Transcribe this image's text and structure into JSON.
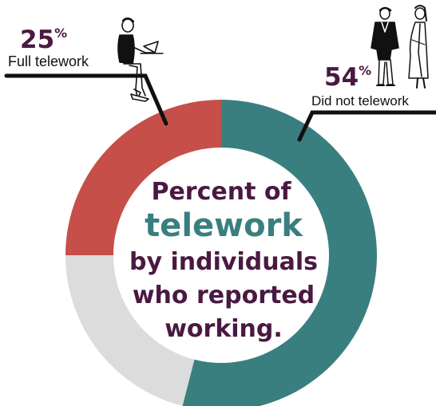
{
  "chart_data": {
    "type": "pie",
    "style": "donut",
    "title_lines": [
      {
        "text": "Percent of",
        "emphasis": false
      },
      {
        "text": "telework",
        "emphasis": true
      },
      {
        "text": "by individuals",
        "emphasis": false
      },
      {
        "text": "who reported",
        "emphasis": false
      },
      {
        "text": "working.",
        "emphasis": false
      }
    ],
    "slices": [
      {
        "label": "Did not telework",
        "percent_text": "54",
        "value": 54,
        "color": "#3a7f80"
      },
      {
        "label": "",
        "value": 21,
        "color": "#dcdcdc"
      },
      {
        "label": "Full telework",
        "percent_text": "25",
        "value": 25,
        "color": "#c64f4a"
      }
    ],
    "percent_sign": "%",
    "colors": {
      "accent_text": "#4a1942",
      "emphasis_text": "#3a7f80",
      "leader_line": "#111111"
    }
  }
}
